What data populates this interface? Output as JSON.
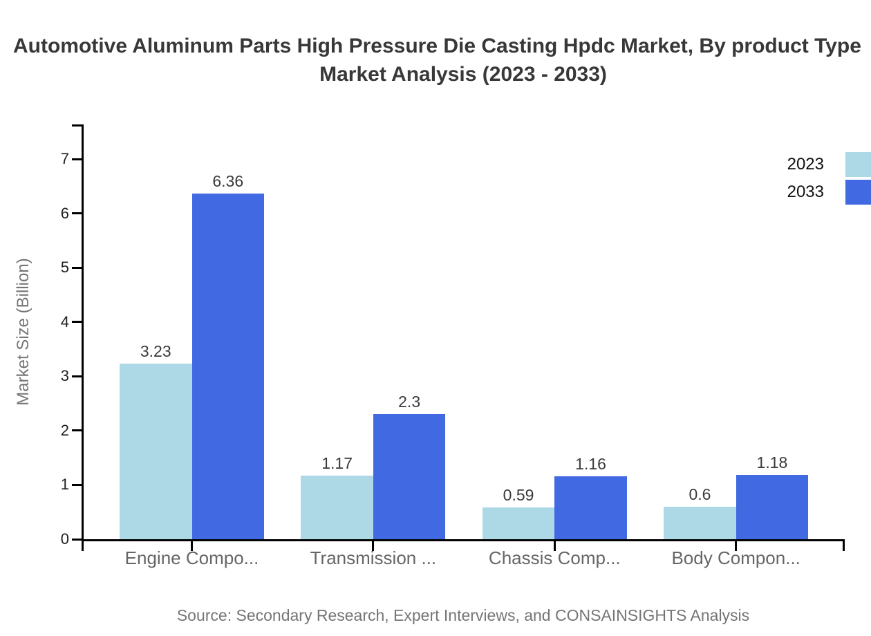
{
  "title": {
    "line1": "Automotive Aluminum Parts High Pressure Die Casting Hpdc Market, By product Type",
    "line2": "Market Analysis (2023 - 2033)"
  },
  "source": "Source: Secondary Research, Expert Interviews, and CONSAINSIGHTS Analysis",
  "legend": {
    "items": [
      {
        "label": "2023",
        "color": "#ADD8E6"
      },
      {
        "label": "2033",
        "color": "#4169E1"
      }
    ]
  },
  "chart_data": {
    "type": "bar",
    "title": "Automotive Aluminum Parts High Pressure Die Casting Hpdc Market, By product Type Market Analysis (2023 - 2033)",
    "categories": [
      "Engine Compo...",
      "Transmission ...",
      "Chassis Comp...",
      "Body Compon..."
    ],
    "series": [
      {
        "name": "2023",
        "color": "#ADD8E6",
        "values": [
          3.23,
          1.17,
          0.59,
          0.6
        ]
      },
      {
        "name": "2033",
        "color": "#4169E1",
        "values": [
          6.36,
          2.3,
          1.16,
          1.18
        ]
      }
    ],
    "value_labels": [
      [
        "3.23",
        "1.17",
        "0.59",
        "0.6"
      ],
      [
        "6.36",
        "2.3",
        "1.16",
        "1.18"
      ]
    ],
    "xlabel": "",
    "ylabel": "Market Size (Billion)",
    "yticks": [
      0,
      1,
      2,
      3,
      4,
      5,
      6,
      7
    ],
    "ylim": [
      0,
      7.6
    ],
    "grid": false,
    "legend_position": "top-right"
  }
}
